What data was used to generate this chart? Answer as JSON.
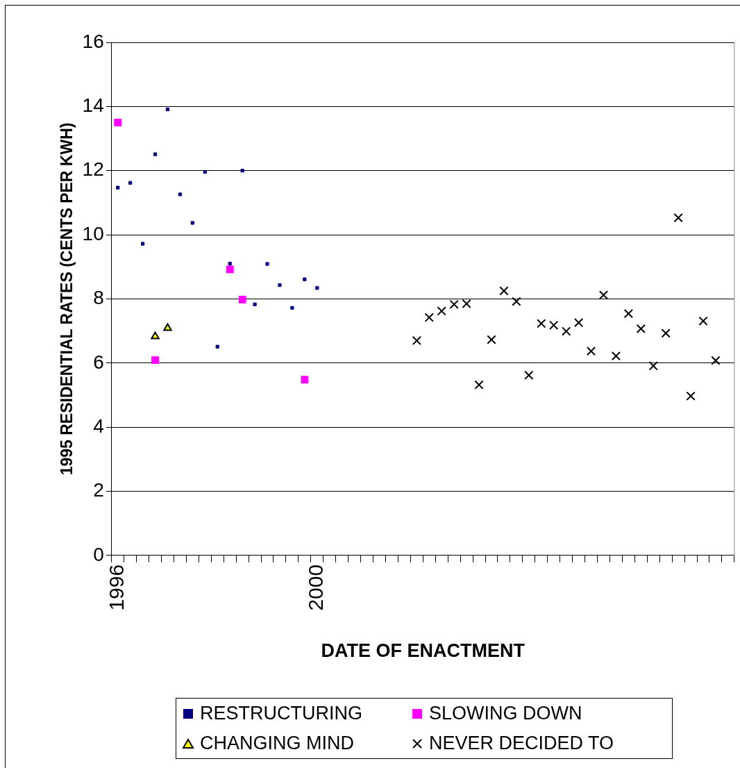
{
  "chart_data": {
    "type": "scatter",
    "xlabel": "DATE OF ENACTMENT",
    "ylabel": "1995 RESIDENTIAL RATES (CENTS PER KWH)",
    "categories": [
      "1996",
      null,
      null,
      null,
      null,
      null,
      null,
      null,
      null,
      null,
      null,
      null,
      null,
      null,
      null,
      null,
      "2000",
      null,
      null,
      null,
      null,
      null,
      null,
      null,
      null,
      null,
      null,
      null,
      null,
      null,
      null,
      null,
      null,
      null,
      null,
      null,
      null,
      null,
      null,
      null,
      null,
      null,
      null,
      null,
      null,
      null,
      null,
      null,
      null,
      null
    ],
    "ylim": [
      0,
      16
    ],
    "yticks": [
      0,
      2,
      4,
      6,
      8,
      10,
      12,
      14,
      16
    ],
    "grid": "y",
    "legend": "bottom",
    "series": [
      {
        "name": "RESTRUCTURING",
        "color": "#000080",
        "marker": "square",
        "values": [
          11.47,
          11.62,
          9.72,
          12.51,
          13.91,
          11.26,
          10.37,
          11.96,
          6.51,
          9.1,
          12.0,
          7.83,
          9.09,
          8.43,
          7.72,
          8.61,
          8.34,
          null,
          null,
          null,
          null,
          null,
          null,
          null,
          null,
          null,
          null,
          null,
          null,
          null,
          null,
          null,
          null,
          null,
          null,
          null,
          null,
          null,
          null,
          null,
          null,
          null,
          null,
          null,
          null,
          null,
          null,
          null,
          null,
          null
        ]
      },
      {
        "name": "SLOWING DOWN",
        "color": "#ff00ff",
        "marker": "square",
        "values": [
          13.5,
          null,
          null,
          6.09,
          null,
          null,
          null,
          null,
          null,
          8.92,
          7.98,
          null,
          null,
          null,
          null,
          5.48,
          null,
          null,
          null,
          null,
          null,
          null,
          null,
          null,
          null,
          null,
          null,
          null,
          null,
          null,
          null,
          null,
          null,
          null,
          null,
          null,
          null,
          null,
          null,
          null,
          null,
          null,
          null,
          null,
          null,
          null,
          null,
          null,
          null,
          null
        ]
      },
      {
        "name": "CHANGING MIND",
        "color": "#ffff00",
        "marker": "triangle",
        "values": [
          null,
          null,
          null,
          6.83,
          7.09,
          null,
          null,
          null,
          null,
          null,
          null,
          null,
          null,
          null,
          null,
          null,
          null,
          null,
          null,
          null,
          null,
          null,
          null,
          null,
          null,
          null,
          null,
          null,
          null,
          null,
          null,
          null,
          null,
          null,
          null,
          null,
          null,
          null,
          null,
          null,
          null,
          null,
          null,
          null,
          null,
          null,
          null,
          null,
          null,
          null
        ]
      },
      {
        "name": "NEVER DECIDED TO",
        "color": "#000000",
        "marker": "cross",
        "values": [
          null,
          null,
          null,
          null,
          null,
          null,
          null,
          null,
          null,
          null,
          null,
          null,
          null,
          null,
          null,
          null,
          null,
          null,
          null,
          null,
          null,
          null,
          null,
          null,
          6.7,
          7.42,
          7.62,
          7.83,
          7.85,
          5.32,
          6.73,
          8.25,
          7.92,
          5.62,
          7.23,
          7.18,
          6.99,
          7.26,
          6.37,
          8.12,
          6.22,
          7.54,
          7.07,
          5.91,
          6.93,
          10.53,
          4.97,
          7.31,
          6.08,
          null
        ]
      }
    ]
  }
}
